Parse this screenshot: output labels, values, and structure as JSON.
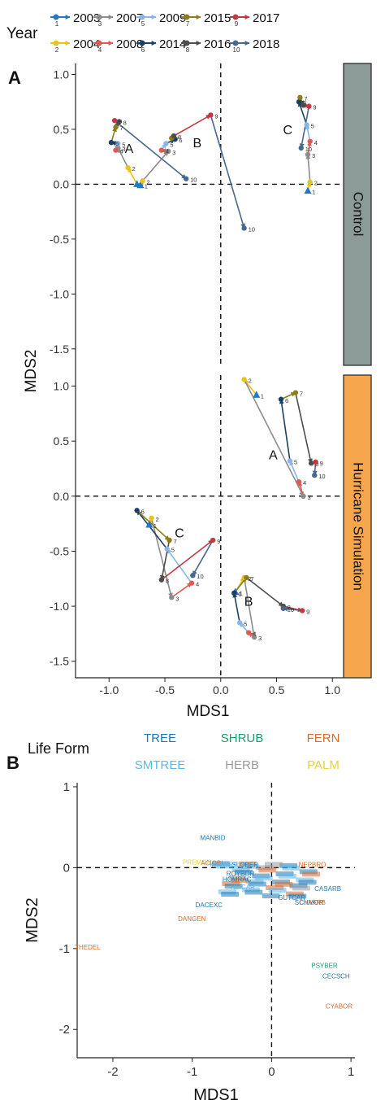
{
  "colors": {
    "y2003": "#1f78c8",
    "y2004": "#e8c21f",
    "y2007": "#8c8c8c",
    "y2008": "#e05a55",
    "y2009": "#8ab6e6",
    "y2014": "#1b3f66",
    "y2015": "#8c7d1a",
    "y2016": "#4d4d4d",
    "y2017": "#c0393f",
    "y2018": "#47688f",
    "control_strip": "#8c9a98",
    "hurricane_strip": "#f6a64d",
    "tree": "#1f78b4",
    "smtree": "#5cb7ea",
    "shrub": "#1a9e6f",
    "herb": "#9a9a9a",
    "fern": "#d86a2c",
    "palm": "#ecd03a"
  },
  "panel_a": {
    "tag": "A",
    "legend_title": "Year",
    "legend": [
      {
        "year": "2003",
        "num": "1",
        "color_key": "y2003"
      },
      {
        "year": "2004",
        "num": "2",
        "color_key": "y2004"
      },
      {
        "year": "2007",
        "num": "3",
        "color_key": "y2007"
      },
      {
        "year": "2008",
        "num": "4",
        "color_key": "y2008"
      },
      {
        "year": "2009",
        "num": "5",
        "color_key": "y2009"
      },
      {
        "year": "2014",
        "num": "6",
        "color_key": "y2014"
      },
      {
        "year": "2015",
        "num": "7",
        "color_key": "y2015"
      },
      {
        "year": "2016",
        "num": "8",
        "color_key": "y2016"
      },
      {
        "year": "2017",
        "num": "9",
        "color_key": "y2017"
      },
      {
        "year": "2018",
        "num": "10",
        "color_key": "y2018"
      }
    ],
    "strip_control": "Control",
    "strip_hurricane": "Hurricane Simulation",
    "xlabel": "MDS1",
    "ylabel": "MDS2"
  },
  "chart_data": [
    {
      "panel": "A",
      "type": "scatter",
      "subtype": "trajectory",
      "xlabel": "MDS1",
      "ylabel": "MDS2",
      "xlim": [
        -1.3,
        1.1
      ],
      "ylim": [
        -1.65,
        1.1
      ],
      "x_ticks": [
        -1.0,
        -0.5,
        0.0,
        0.5,
        1.0
      ],
      "x_tick_labels": [
        "-1.0",
        "-0.5",
        "0.0",
        "0.5",
        "1.0"
      ],
      "y_ticks": [
        -1.5,
        -1.0,
        -0.5,
        0.0,
        0.5,
        1.0
      ],
      "y_tick_labels": [
        "-1.5",
        "-1.0",
        "-0.5",
        "0.0",
        "0.5",
        "1.0"
      ],
      "reference_lines": {
        "x": 0,
        "y": 0,
        "style": "dashed"
      },
      "facets": [
        {
          "name": "Control",
          "groups": [
            {
              "label": "A",
              "label_pos": [
                -0.82,
                0.33
              ],
              "points": [
                {
                  "t": "1",
                  "x": -0.75,
                  "y": 0.0
                },
                {
                  "t": "2",
                  "x": -0.83,
                  "y": 0.15
                },
                {
                  "t": "3",
                  "x": -0.92,
                  "y": 0.33
                },
                {
                  "t": "4",
                  "x": -0.94,
                  "y": 0.31
                },
                {
                  "t": "5",
                  "x": -0.92,
                  "y": 0.37
                },
                {
                  "t": "6",
                  "x": -0.98,
                  "y": 0.38
                },
                {
                  "t": "7",
                  "x": -0.94,
                  "y": 0.52
                },
                {
                  "t": "8",
                  "x": -0.91,
                  "y": 0.57
                },
                {
                  "t": "9",
                  "x": -0.95,
                  "y": 0.58
                },
                {
                  "t": "10",
                  "x": -0.31,
                  "y": 0.05
                }
              ]
            },
            {
              "label": "B",
              "label_pos": [
                -0.21,
                0.38
              ],
              "points": [
                {
                  "t": "1",
                  "x": -0.72,
                  "y": -0.01
                },
                {
                  "t": "2",
                  "x": -0.7,
                  "y": 0.03
                },
                {
                  "t": "3",
                  "x": -0.47,
                  "y": 0.3
                },
                {
                  "t": "4",
                  "x": -0.53,
                  "y": 0.31
                },
                {
                  "t": "5",
                  "x": -0.49,
                  "y": 0.37
                },
                {
                  "t": "6",
                  "x": -0.41,
                  "y": 0.41
                },
                {
                  "t": "7",
                  "x": -0.44,
                  "y": 0.42
                },
                {
                  "t": "8",
                  "x": -0.42,
                  "y": 0.44
                },
                {
                  "t": "9",
                  "x": -0.09,
                  "y": 0.63
                },
                {
                  "t": "10",
                  "x": 0.21,
                  "y": -0.4
                }
              ]
            },
            {
              "label": "C",
              "label_pos": [
                0.6,
                0.5
              ],
              "points": [
                {
                  "t": "1",
                  "x": 0.78,
                  "y": -0.06
                },
                {
                  "t": "2",
                  "x": 0.8,
                  "y": 0.02
                },
                {
                  "t": "3",
                  "x": 0.78,
                  "y": 0.27
                },
                {
                  "t": "4",
                  "x": 0.8,
                  "y": 0.39
                },
                {
                  "t": "5",
                  "x": 0.77,
                  "y": 0.54
                },
                {
                  "t": "6",
                  "x": 0.7,
                  "y": 0.75
                },
                {
                  "t": "7",
                  "x": 0.71,
                  "y": 0.79
                },
                {
                  "t": "8",
                  "x": 0.74,
                  "y": 0.72
                },
                {
                  "t": "9",
                  "x": 0.79,
                  "y": 0.71
                },
                {
                  "t": "10",
                  "x": 0.72,
                  "y": 0.33
                }
              ]
            }
          ]
        },
        {
          "name": "Hurricane Simulation",
          "groups": [
            {
              "label": "A",
              "label_pos": [
                0.47,
                0.38
              ],
              "points": [
                {
                  "t": "1",
                  "x": 0.32,
                  "y": 0.92
                },
                {
                  "t": "2",
                  "x": 0.21,
                  "y": 1.06
                },
                {
                  "t": "3",
                  "x": 0.74,
                  "y": 0.0
                },
                {
                  "t": "4",
                  "x": 0.7,
                  "y": 0.13
                },
                {
                  "t": "5",
                  "x": 0.62,
                  "y": 0.32
                },
                {
                  "t": "6",
                  "x": 0.54,
                  "y": 0.88
                },
                {
                  "t": "7",
                  "x": 0.67,
                  "y": 0.94
                },
                {
                  "t": "8",
                  "x": 0.81,
                  "y": 0.3
                },
                {
                  "t": "9",
                  "x": 0.85,
                  "y": 0.31
                },
                {
                  "t": "10",
                  "x": 0.84,
                  "y": 0.19
                }
              ]
            },
            {
              "label": "B",
              "label_pos": [
                0.25,
                -0.95
              ],
              "points": [
                {
                  "t": "1",
                  "x": 0.13,
                  "y": -0.87
                },
                {
                  "t": "2",
                  "x": 0.21,
                  "y": -0.74
                },
                {
                  "t": "3",
                  "x": 0.3,
                  "y": -1.28
                },
                {
                  "t": "4",
                  "x": 0.25,
                  "y": -1.24
                },
                {
                  "t": "5",
                  "x": 0.17,
                  "y": -1.15
                },
                {
                  "t": "6",
                  "x": 0.12,
                  "y": -0.88
                },
                {
                  "t": "7",
                  "x": 0.23,
                  "y": -0.74
                },
                {
                  "t": "8",
                  "x": 0.56,
                  "y": -1.0
                },
                {
                  "t": "9",
                  "x": 0.73,
                  "y": -1.04
                },
                {
                  "t": "10",
                  "x": 0.56,
                  "y": -1.02
                }
              ]
            },
            {
              "label": "C",
              "label_pos": [
                -0.37,
                -0.33
              ],
              "points": [
                {
                  "t": "1",
                  "x": -0.64,
                  "y": -0.26
                },
                {
                  "t": "2",
                  "x": -0.62,
                  "y": -0.2
                },
                {
                  "t": "3",
                  "x": -0.44,
                  "y": -0.92
                },
                {
                  "t": "4",
                  "x": -0.26,
                  "y": -0.79
                },
                {
                  "t": "5",
                  "x": -0.48,
                  "y": -0.48
                },
                {
                  "t": "6",
                  "x": -0.75,
                  "y": -0.13
                },
                {
                  "t": "7",
                  "x": -0.46,
                  "y": -0.4
                },
                {
                  "t": "8",
                  "x": -0.53,
                  "y": -0.76
                },
                {
                  "t": "9",
                  "x": -0.07,
                  "y": -0.4
                },
                {
                  "t": "10",
                  "x": -0.25,
                  "y": -0.72
                }
              ]
            }
          ]
        }
      ]
    },
    {
      "panel": "B",
      "type": "scatter",
      "subtype": "species labels",
      "xlabel": "MDS1",
      "ylabel": "MDS2",
      "xlim": [
        -2.45,
        1.05
      ],
      "ylim": [
        -2.35,
        1.05
      ],
      "x_ticks": [
        -2,
        -1,
        0,
        1
      ],
      "x_tick_labels": [
        "-2",
        "-1",
        "0",
        "1"
      ],
      "y_ticks": [
        -2,
        -1,
        0,
        1
      ],
      "y_tick_labels": [
        "-2",
        "-1",
        "0",
        "1"
      ],
      "reference_lines": {
        "x": 0,
        "y": 0,
        "style": "dashed"
      },
      "legend_title": "Life Form",
      "legend": [
        {
          "label": "TREE",
          "color_key": "tree"
        },
        {
          "label": "SHRUB",
          "color_key": "shrub"
        },
        {
          "label": "FERN",
          "color_key": "fern"
        },
        {
          "label": "SMTREE",
          "color_key": "smtree"
        },
        {
          "label": "HERB",
          "color_key": "herb"
        },
        {
          "label": "PALM",
          "color_key": "palm"
        }
      ],
      "species": [
        {
          "name": "MANBID",
          "x": -0.9,
          "y": 0.37,
          "form": "tree"
        },
        {
          "name": "PREMON",
          "x": -1.12,
          "y": 0.07,
          "form": "palm"
        },
        {
          "name": "ACIOBI",
          "x": -0.89,
          "y": 0.06,
          "form": "fern"
        },
        {
          "name": "MYRDEF",
          "x": -0.78,
          "y": 0.04,
          "form": "smtree"
        },
        {
          "name": "SLOBER",
          "x": -0.5,
          "y": 0.04,
          "form": "tree"
        },
        {
          "name": "NEPBRO",
          "x": 0.34,
          "y": 0.04,
          "form": "fern"
        },
        {
          "name": "ROYBOR",
          "x": -0.57,
          "y": -0.07,
          "form": "tree"
        },
        {
          "name": "HOMRAC",
          "x": -0.62,
          "y": -0.14,
          "form": "tree"
        },
        {
          "name": "HEICAR",
          "x": -0.52,
          "y": -0.24,
          "form": "smtree"
        },
        {
          "name": "CASARB",
          "x": 0.54,
          "y": -0.26,
          "form": "tree"
        },
        {
          "name": "GUTCAR",
          "x": 0.08,
          "y": -0.37,
          "form": "tree"
        },
        {
          "name": "SCHMOR",
          "x": 0.29,
          "y": -0.43,
          "form": "tree"
        },
        {
          "name": "CYAARB",
          "x": 0.35,
          "y": -0.43,
          "form": "fern"
        },
        {
          "name": "DACEXC",
          "x": -0.96,
          "y": -0.46,
          "form": "tree"
        },
        {
          "name": "DANGEN",
          "x": -1.18,
          "y": -0.63,
          "form": "fern"
        },
        {
          "name": "THEDEL",
          "x": -2.48,
          "y": -0.98,
          "form": "fern"
        },
        {
          "name": "PSYBER",
          "x": 0.5,
          "y": -1.21,
          "form": "shrub"
        },
        {
          "name": "CECSCH",
          "x": 0.64,
          "y": -1.34,
          "form": "tree"
        },
        {
          "name": "CYABOR",
          "x": 0.68,
          "y": -1.71,
          "form": "fern"
        }
      ]
    }
  ]
}
